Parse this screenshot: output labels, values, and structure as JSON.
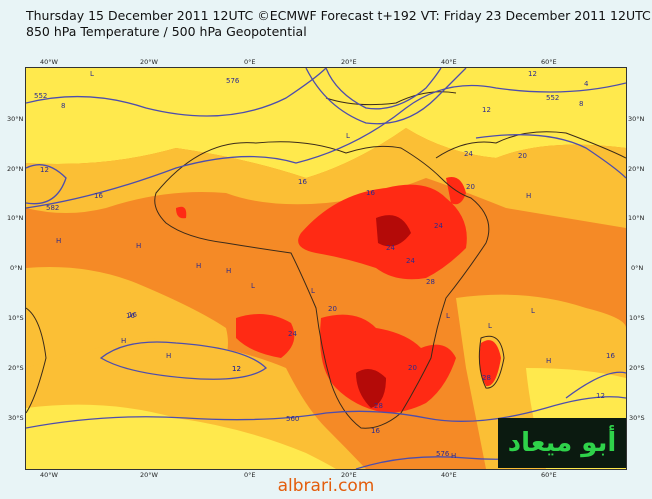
{
  "title": {
    "line1": "Thursday 15 December 2011 12UTC ©ECMWF Forecast t+192 VT: Friday 23 December 2011 12UTC",
    "line2": "850 hPa Temperature / 500 hPa Geopotential"
  },
  "axes": {
    "top_ticks": [
      "40°W",
      "20°W",
      "0°E",
      "20°E",
      "40°E",
      "60°E"
    ],
    "bottom_ticks": [
      "40°W",
      "20°W",
      "0°E",
      "20°E",
      "40°E",
      "60°E"
    ],
    "left_ticks": [
      "30°N",
      "20°N",
      "10°N",
      "0°N",
      "10°S",
      "20°S",
      "30°S"
    ],
    "right_ticks": [
      "30°N",
      "20°N",
      "10°N",
      "0°N",
      "10°S",
      "20°S",
      "30°S"
    ]
  },
  "map_labels": {
    "contours": [
      "552",
      "576",
      "582",
      "560",
      "576",
      "552"
    ],
    "temps": [
      "8",
      "12",
      "16",
      "16",
      "16",
      "20",
      "24",
      "24",
      "24",
      "28",
      "20",
      "16",
      "16",
      "12",
      "4",
      "8",
      "12",
      "12",
      "12",
      "16",
      "20",
      "24",
      "28",
      "20",
      "24",
      "28",
      "16",
      "12"
    ],
    "highs": [
      "H",
      "H",
      "H",
      "H",
      "H",
      "H",
      "H",
      "H",
      "H"
    ],
    "lows": [
      "L",
      "L",
      "L",
      "L",
      "L",
      "L",
      "L"
    ]
  },
  "colors": {
    "cool": "#ffe94d",
    "mild": "#fbbf35",
    "warm": "#f58a26",
    "hot": "#ff2a14",
    "very_hot": "#b40a08",
    "contour": "#4d4dad"
  },
  "logo": {
    "text": "أبو ميعاد"
  },
  "footer": {
    "text": "albrari.com"
  }
}
